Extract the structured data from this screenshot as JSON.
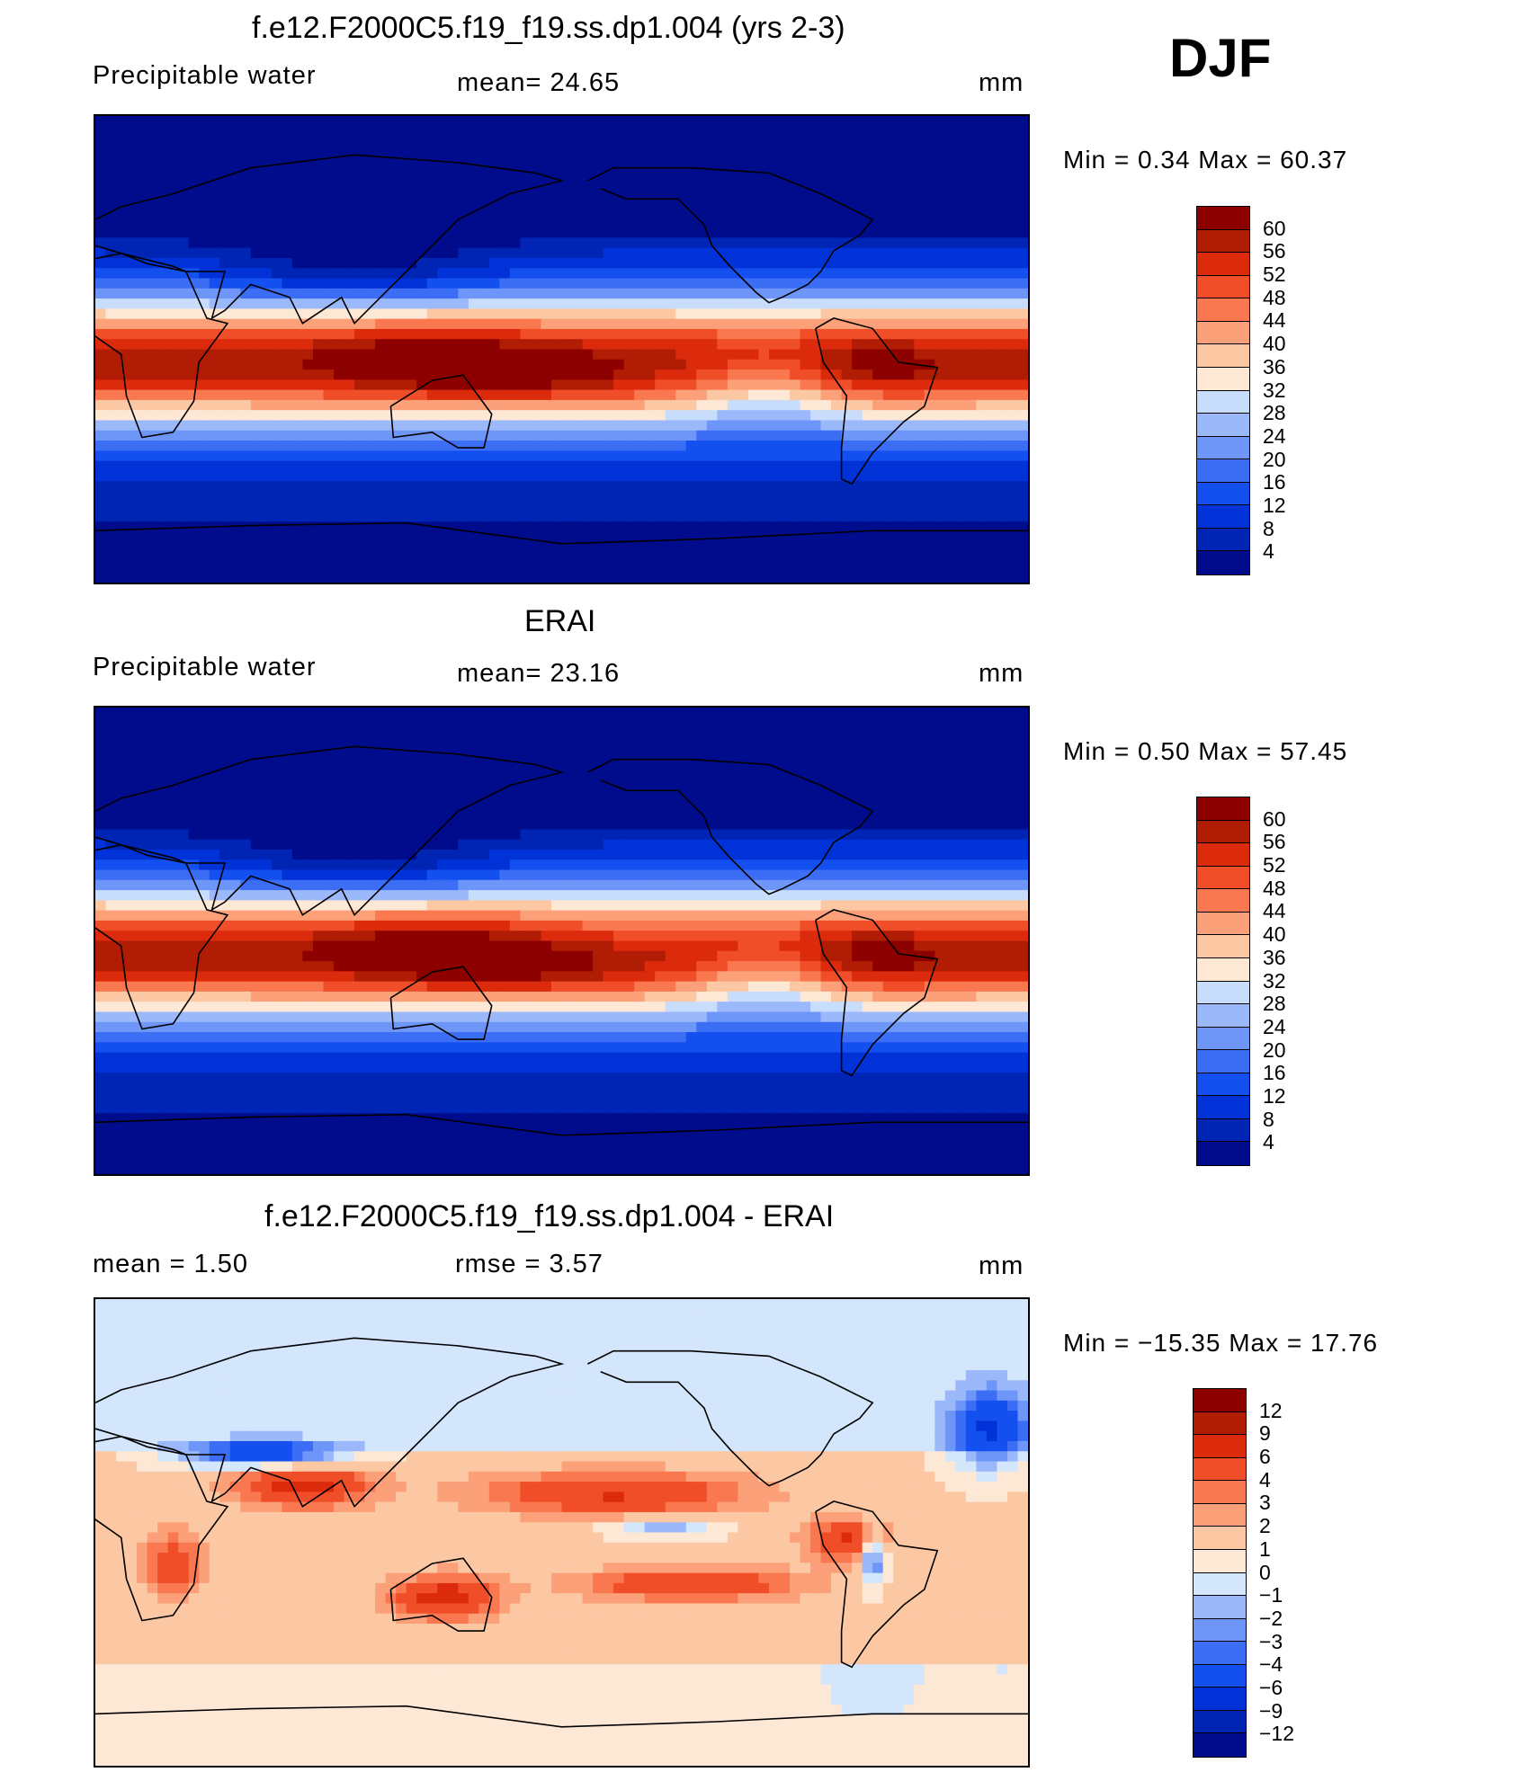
{
  "figure_title": "DJF",
  "palettes": {
    "abs": [
      "#000c8c",
      "#0024b4",
      "#0032d8",
      "#1450f0",
      "#3c6ef5",
      "#6e96f8",
      "#9ab8fa",
      "#c8dcfc",
      "#fde8d6",
      "#fcc8a4",
      "#fba078",
      "#f97850",
      "#f04e28",
      "#dc2a0c",
      "#b01c04",
      "#8c0000"
    ],
    "diff": [
      "#000c8c",
      "#0024b4",
      "#0032d8",
      "#1450f0",
      "#3c6ef5",
      "#6e96f8",
      "#9ab8fa",
      "#d4e6fc",
      "#fde8d6",
      "#fcc8a4",
      "#fba078",
      "#f97850",
      "#f04e28",
      "#dc2a0c",
      "#b01c04",
      "#8c0000"
    ]
  },
  "panels": [
    {
      "title": "f.e12.F2000C5.f19_f19.ss.dp1.004 (yrs 2-3)",
      "left_label": "Precipitable  water",
      "center_label": "mean=   24.65",
      "units": "mm",
      "stats": "Min  =     0.34  Max  =    60.37",
      "colorbar_ticks": [
        "60",
        "56",
        "52",
        "48",
        "44",
        "40",
        "36",
        "32",
        "28",
        "24",
        "20",
        "16",
        "12",
        "8",
        "4"
      ]
    },
    {
      "title": "ERAI",
      "left_label": "Precipitable  water",
      "center_label": "mean=   23.16",
      "units": "mm",
      "stats": "Min  =     0.50  Max  =    57.45",
      "colorbar_ticks": [
        "60",
        "56",
        "52",
        "48",
        "44",
        "40",
        "36",
        "32",
        "28",
        "24",
        "20",
        "16",
        "12",
        "8",
        "4"
      ]
    },
    {
      "title": "f.e12.F2000C5.f19_f19.ss.dp1.004 - ERAI",
      "left_label": "mean  =      1.50",
      "center_label": "rmse  =     3.57",
      "units": "mm",
      "stats": "Min  =  −15.35  Max  =    17.76",
      "colorbar_ticks": [
        "12",
        "9",
        "6",
        "4",
        "3",
        "2",
        "1",
        "0",
        "−1",
        "−2",
        "−3",
        "−4",
        "−6",
        "−9",
        "−12"
      ]
    }
  ],
  "chart_data": [
    {
      "type": "heatmap",
      "title": "f.e12.F2000C5.f19_f19.ss.dp1.004 (yrs 2-3)",
      "variable": "Precipitable water",
      "units": "mm",
      "season": "DJF",
      "mean": 24.65,
      "min": 0.34,
      "max": 60.37,
      "contour_levels": [
        4,
        8,
        12,
        16,
        20,
        24,
        28,
        32,
        36,
        40,
        44,
        48,
        52,
        56,
        60
      ]
    },
    {
      "type": "heatmap",
      "title": "ERAI",
      "variable": "Precipitable water",
      "units": "mm",
      "season": "DJF",
      "mean": 23.16,
      "min": 0.5,
      "max": 57.45,
      "contour_levels": [
        4,
        8,
        12,
        16,
        20,
        24,
        28,
        32,
        36,
        40,
        44,
        48,
        52,
        56,
        60
      ]
    },
    {
      "type": "heatmap",
      "title": "f.e12.F2000C5.f19_f19.ss.dp1.004 - ERAI",
      "units": "mm",
      "season": "DJF",
      "mean": 1.5,
      "rmse": 3.57,
      "min": -15.35,
      "max": 17.76,
      "contour_levels": [
        -12,
        -9,
        -6,
        -4,
        -3,
        -2,
        -1,
        0,
        1,
        2,
        3,
        4,
        6,
        9,
        12
      ]
    }
  ]
}
